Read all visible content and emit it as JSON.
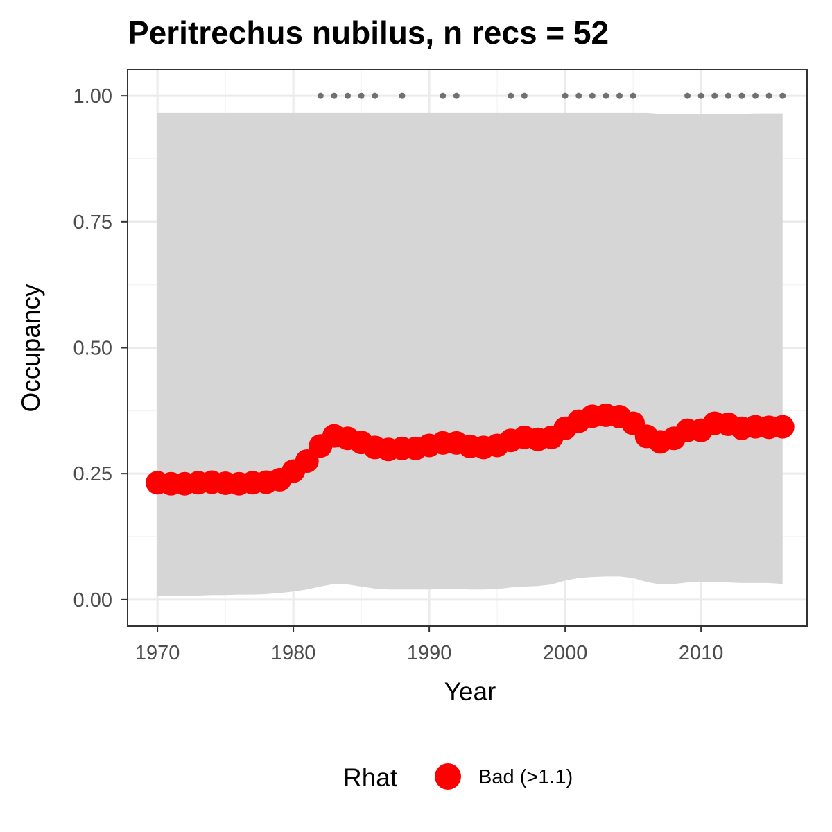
{
  "chart_data": {
    "type": "line",
    "title": "Peritrechus nubilus, n recs = 52",
    "xlabel": "Year",
    "ylabel": "Occupancy",
    "xlim": [
      1967.8,
      2017.8
    ],
    "ylim": [
      -0.0525,
      1.0525
    ],
    "x_ticks": [
      1970,
      1980,
      1990,
      2000,
      2010
    ],
    "x_tick_labels": [
      "1970",
      "1980",
      "1990",
      "2000",
      "2010"
    ],
    "y_ticks": [
      0,
      0.25,
      0.5,
      0.75,
      1.0
    ],
    "y_tick_labels": [
      "0.00",
      "0.25",
      "0.50",
      "0.75",
      "1.00"
    ],
    "grid": true,
    "legend": {
      "position": "bottom",
      "title": "Rhat",
      "entries": [
        {
          "label": "Bad (>1.1)",
          "color": "#ff0000"
        }
      ]
    },
    "colors": {
      "series": "#ff0000",
      "ribbon": "#d6d6d6",
      "records": "#707070",
      "grid_major": "#ebebeb",
      "grid_minor": "#f4f4f4",
      "panel_border": "#333333"
    },
    "series": [
      {
        "name": "Occupancy",
        "x": [
          1970,
          1971,
          1972,
          1973,
          1974,
          1975,
          1976,
          1977,
          1978,
          1979,
          1980,
          1981,
          1982,
          1983,
          1984,
          1985,
          1986,
          1987,
          1988,
          1989,
          1990,
          1991,
          1992,
          1993,
          1994,
          1995,
          1996,
          1997,
          1998,
          1999,
          2000,
          2001,
          2002,
          2003,
          2004,
          2005,
          2006,
          2007,
          2008,
          2009,
          2010,
          2011,
          2012,
          2013,
          2014,
          2015,
          2016
        ],
        "y": [
          0.232,
          0.23,
          0.23,
          0.232,
          0.233,
          0.231,
          0.23,
          0.232,
          0.233,
          0.238,
          0.255,
          0.275,
          0.305,
          0.325,
          0.32,
          0.312,
          0.302,
          0.298,
          0.3,
          0.3,
          0.306,
          0.311,
          0.311,
          0.304,
          0.302,
          0.306,
          0.316,
          0.322,
          0.318,
          0.322,
          0.34,
          0.354,
          0.364,
          0.366,
          0.363,
          0.35,
          0.324,
          0.313,
          0.32,
          0.336,
          0.336,
          0.35,
          0.348,
          0.34,
          0.343,
          0.342,
          0.343
        ]
      }
    ],
    "ribbon": {
      "name": "95% credible interval",
      "x": [
        1970,
        1971,
        1972,
        1973,
        1974,
        1975,
        1976,
        1977,
        1978,
        1979,
        1980,
        1981,
        1982,
        1983,
        1984,
        1985,
        1986,
        1987,
        1988,
        1989,
        1990,
        1991,
        1992,
        1993,
        1994,
        1995,
        1996,
        1997,
        1998,
        1999,
        2000,
        2001,
        2002,
        2003,
        2004,
        2005,
        2006,
        2007,
        2008,
        2009,
        2010,
        2011,
        2012,
        2013,
        2014,
        2015,
        2016
      ],
      "lower": [
        0.008,
        0.008,
        0.008,
        0.008,
        0.009,
        0.009,
        0.01,
        0.01,
        0.011,
        0.013,
        0.016,
        0.02,
        0.026,
        0.031,
        0.03,
        0.026,
        0.022,
        0.02,
        0.02,
        0.02,
        0.02,
        0.021,
        0.021,
        0.02,
        0.02,
        0.021,
        0.024,
        0.026,
        0.027,
        0.03,
        0.038,
        0.043,
        0.045,
        0.046,
        0.046,
        0.043,
        0.035,
        0.03,
        0.031,
        0.034,
        0.035,
        0.035,
        0.034,
        0.033,
        0.033,
        0.033,
        0.031
      ],
      "upper": [
        0.966,
        0.966,
        0.966,
        0.966,
        0.966,
        0.966,
        0.966,
        0.966,
        0.966,
        0.966,
        0.966,
        0.966,
        0.966,
        0.966,
        0.966,
        0.966,
        0.966,
        0.966,
        0.966,
        0.966,
        0.966,
        0.966,
        0.966,
        0.966,
        0.966,
        0.966,
        0.966,
        0.966,
        0.966,
        0.966,
        0.966,
        0.966,
        0.966,
        0.966,
        0.966,
        0.966,
        0.966,
        0.964,
        0.964,
        0.964,
        0.964,
        0.964,
        0.964,
        0.964,
        0.965,
        0.965,
        0.965
      ]
    },
    "records": {
      "name": "Years with records",
      "x": [
        1982,
        1983,
        1984,
        1985,
        1986,
        1988,
        1991,
        1992,
        1996,
        1997,
        2000,
        2001,
        2002,
        2003,
        2004,
        2005,
        2009,
        2010,
        2011,
        2012,
        2013,
        2014,
        2015,
        2016
      ],
      "y": 1.0
    }
  }
}
